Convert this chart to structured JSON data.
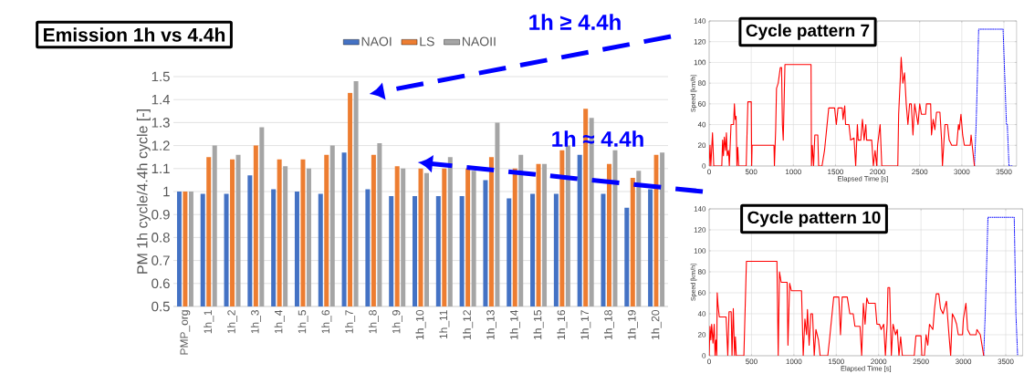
{
  "chart_data": [
    {
      "type": "bar",
      "title": "Emission 1h vs 4.4h",
      "ylabel": "PM 1h cycle/4.4h cycle [-]",
      "categories": [
        "PMP_org",
        "1h_1",
        "1h_2",
        "1h_3",
        "1h_4",
        "1h_5",
        "1h_6",
        "1h_7",
        "1h_8",
        "1h_9",
        "1h_10",
        "1h_11",
        "1h_12",
        "1h_13",
        "1h_14",
        "1h_15",
        "1h_16",
        "1h_17",
        "1h_18",
        "1h_19",
        "1h_20"
      ],
      "series": [
        {
          "name": "NAOI",
          "color": "#4472c4",
          "values": [
            1.0,
            0.99,
            0.99,
            1.07,
            1.01,
            1.0,
            0.99,
            1.17,
            1.01,
            0.98,
            0.98,
            0.98,
            0.98,
            1.05,
            0.97,
            0.99,
            0.99,
            1.16,
            0.99,
            0.93,
            1.01
          ]
        },
        {
          "name": "LS",
          "color": "#ed7d31",
          "values": [
            1.0,
            1.15,
            1.14,
            1.2,
            1.14,
            1.14,
            1.16,
            1.43,
            1.16,
            1.11,
            1.1,
            1.1,
            1.1,
            1.15,
            1.1,
            1.12,
            1.18,
            1.36,
            1.12,
            1.06,
            1.16
          ]
        },
        {
          "name": "NAOII",
          "color": "#a5a5a5",
          "values": [
            1.0,
            1.2,
            1.16,
            1.28,
            1.11,
            1.1,
            1.2,
            1.48,
            1.21,
            1.1,
            1.08,
            1.15,
            1.09,
            1.3,
            1.16,
            1.12,
            1.2,
            1.32,
            1.18,
            1.09,
            1.17
          ]
        }
      ],
      "ylim": [
        0.5,
        1.5
      ],
      "yticks": [
        0.5,
        0.6,
        0.7,
        0.8,
        0.9,
        1,
        1.1,
        1.2,
        1.3,
        1.4,
        1.5
      ],
      "grid": "y",
      "legend": "top",
      "annotations": [
        "1h ≥ 4.4h",
        "1h ≈ 4.4h"
      ]
    },
    {
      "type": "line",
      "title": "Cycle pattern 7",
      "xlabel": "Elapsed Time [s]",
      "ylabel": "Speed [km/h]",
      "series": [
        {
          "color": "#0000ff",
          "line_style": "dotted",
          "x": [
            3150,
            3170,
            3200,
            3490,
            3530,
            3540,
            3560,
            3600
          ],
          "values": [
            0,
            40,
            132,
            132,
            40,
            40,
            0,
            0
          ]
        },
        {
          "color": "#ff0000",
          "x": [
            0,
            10,
            20,
            40,
            55,
            150,
            160,
            170,
            180,
            195,
            205,
            215,
            230,
            240,
            260,
            290,
            300,
            310,
            320,
            330,
            340,
            350,
            440,
            460,
            500,
            505,
            510,
            770,
            775,
            790,
            800,
            820,
            845,
            860,
            870,
            880,
            900,
            1210,
            1215,
            1225,
            1240,
            1255,
            1290,
            1300,
            1340,
            1370,
            1420,
            1490,
            1510,
            1530,
            1580,
            1590,
            1610,
            1620,
            1660,
            1680,
            1720,
            1740,
            1760,
            1770,
            1800,
            1820,
            1840,
            1860,
            1870,
            1930,
            1950,
            1970,
            1990,
            2000,
            2030,
            2050,
            2240,
            2250,
            2270,
            2280,
            2300,
            2320,
            2340,
            2360,
            2380,
            2400,
            2420,
            2440,
            2460,
            2480,
            2500,
            2520,
            2570,
            2580,
            2630,
            2640,
            2660,
            2680,
            2700,
            2740,
            2760,
            2770,
            2800,
            2830,
            2850,
            2880,
            2940,
            2960,
            2970,
            2990,
            3010,
            3030,
            3100,
            3110,
            3130,
            3150
          ],
          "values": [
            0,
            20,
            0,
            32,
            0,
            0,
            25,
            10,
            28,
            15,
            32,
            10,
            15,
            0,
            40,
            40,
            60,
            45,
            48,
            0,
            18,
            0,
            0,
            62,
            62,
            0,
            20,
            20,
            0,
            35,
            75,
            80,
            95,
            95,
            40,
            25,
            98,
            98,
            0,
            20,
            0,
            30,
            30,
            0,
            0,
            15,
            56,
            56,
            40,
            56,
            56,
            45,
            58,
            40,
            40,
            25,
            27,
            0,
            40,
            25,
            25,
            45,
            25,
            40,
            25,
            25,
            0,
            15,
            0,
            20,
            40,
            0,
            0,
            50,
            85,
            105,
            80,
            90,
            60,
            40,
            60,
            60,
            30,
            60,
            50,
            40,
            60,
            50,
            50,
            60,
            60,
            30,
            45,
            35,
            52,
            52,
            25,
            0,
            40,
            40,
            25,
            20,
            20,
            40,
            35,
            50,
            30,
            20,
            20,
            30,
            15,
            0
          ]
        }
      ],
      "xlim": [
        0,
        3650
      ],
      "ylim": [
        0,
        140
      ],
      "xticks": [
        0,
        500,
        1000,
        1500,
        2000,
        2500,
        3000,
        3500
      ],
      "yticks": [
        0,
        20,
        40,
        60,
        80,
        100,
        120,
        140
      ],
      "grid": true
    },
    {
      "type": "line",
      "title": "Cycle pattern 10",
      "xlabel": "Elapsed Time [s]",
      "ylabel": "Speed [km/h]",
      "series": [
        {
          "color": "#0000ff",
          "line_style": "dotted",
          "x": [
            3240,
            3260,
            3290,
            3600,
            3620,
            3640
          ],
          "values": [
            0,
            45,
            132,
            132,
            40,
            0
          ]
        },
        {
          "color": "#ff0000",
          "x": [
            0,
            10,
            20,
            30,
            45,
            60,
            70,
            80,
            90,
            95,
            105,
            120,
            200,
            220,
            235,
            260,
            270,
            285,
            300,
            310,
            320,
            410,
            440,
            800,
            815,
            830,
            850,
            920,
            930,
            950,
            970,
            1090,
            1110,
            1130,
            1150,
            1160,
            1180,
            1200,
            1220,
            1240,
            1260,
            1290,
            1310,
            1400,
            1420,
            1470,
            1530,
            1550,
            1570,
            1630,
            1660,
            1700,
            1720,
            1780,
            1800,
            1820,
            1840,
            1860,
            1880,
            1960,
            1980,
            2010,
            2030,
            2060,
            2080,
            2100,
            2110,
            2130,
            2150,
            2170,
            2200,
            2220,
            2240,
            2260,
            2280,
            2420,
            2440,
            2500,
            2510,
            2540,
            2560,
            2580,
            2600,
            2640,
            2660,
            2680,
            2710,
            2730,
            2760,
            2800,
            2830,
            2850,
            2870,
            2900,
            2920,
            2940,
            2990,
            3000,
            3030,
            3050,
            3080,
            3150,
            3160,
            3200,
            3240
          ],
          "values": [
            0,
            28,
            15,
            30,
            12,
            30,
            0,
            15,
            0,
            60,
            48,
            37,
            37,
            0,
            42,
            42,
            0,
            45,
            0,
            18,
            0,
            0,
            90,
            90,
            0,
            80,
            70,
            70,
            10,
            69,
            62,
            62,
            0,
            35,
            20,
            44,
            10,
            40,
            40,
            0,
            25,
            15,
            0,
            0,
            15,
            56,
            56,
            20,
            56,
            56,
            40,
            40,
            28,
            28,
            0,
            50,
            30,
            55,
            50,
            50,
            30,
            30,
            25,
            30,
            0,
            30,
            65,
            65,
            0,
            30,
            20,
            25,
            0,
            18,
            0,
            0,
            19,
            19,
            0,
            0,
            20,
            10,
            30,
            25,
            45,
            59,
            59,
            45,
            40,
            52,
            20,
            0,
            40,
            35,
            30,
            20,
            20,
            35,
            50,
            25,
            20,
            20,
            25,
            20,
            0
          ]
        }
      ],
      "xlim": [
        0,
        3700
      ],
      "ylim": [
        0,
        140
      ],
      "xticks": [
        0,
        500,
        1000,
        1500,
        2000,
        2500,
        3000,
        3500
      ],
      "yticks": [
        0,
        20,
        40,
        60,
        80,
        100,
        120,
        140
      ],
      "grid": true
    }
  ]
}
